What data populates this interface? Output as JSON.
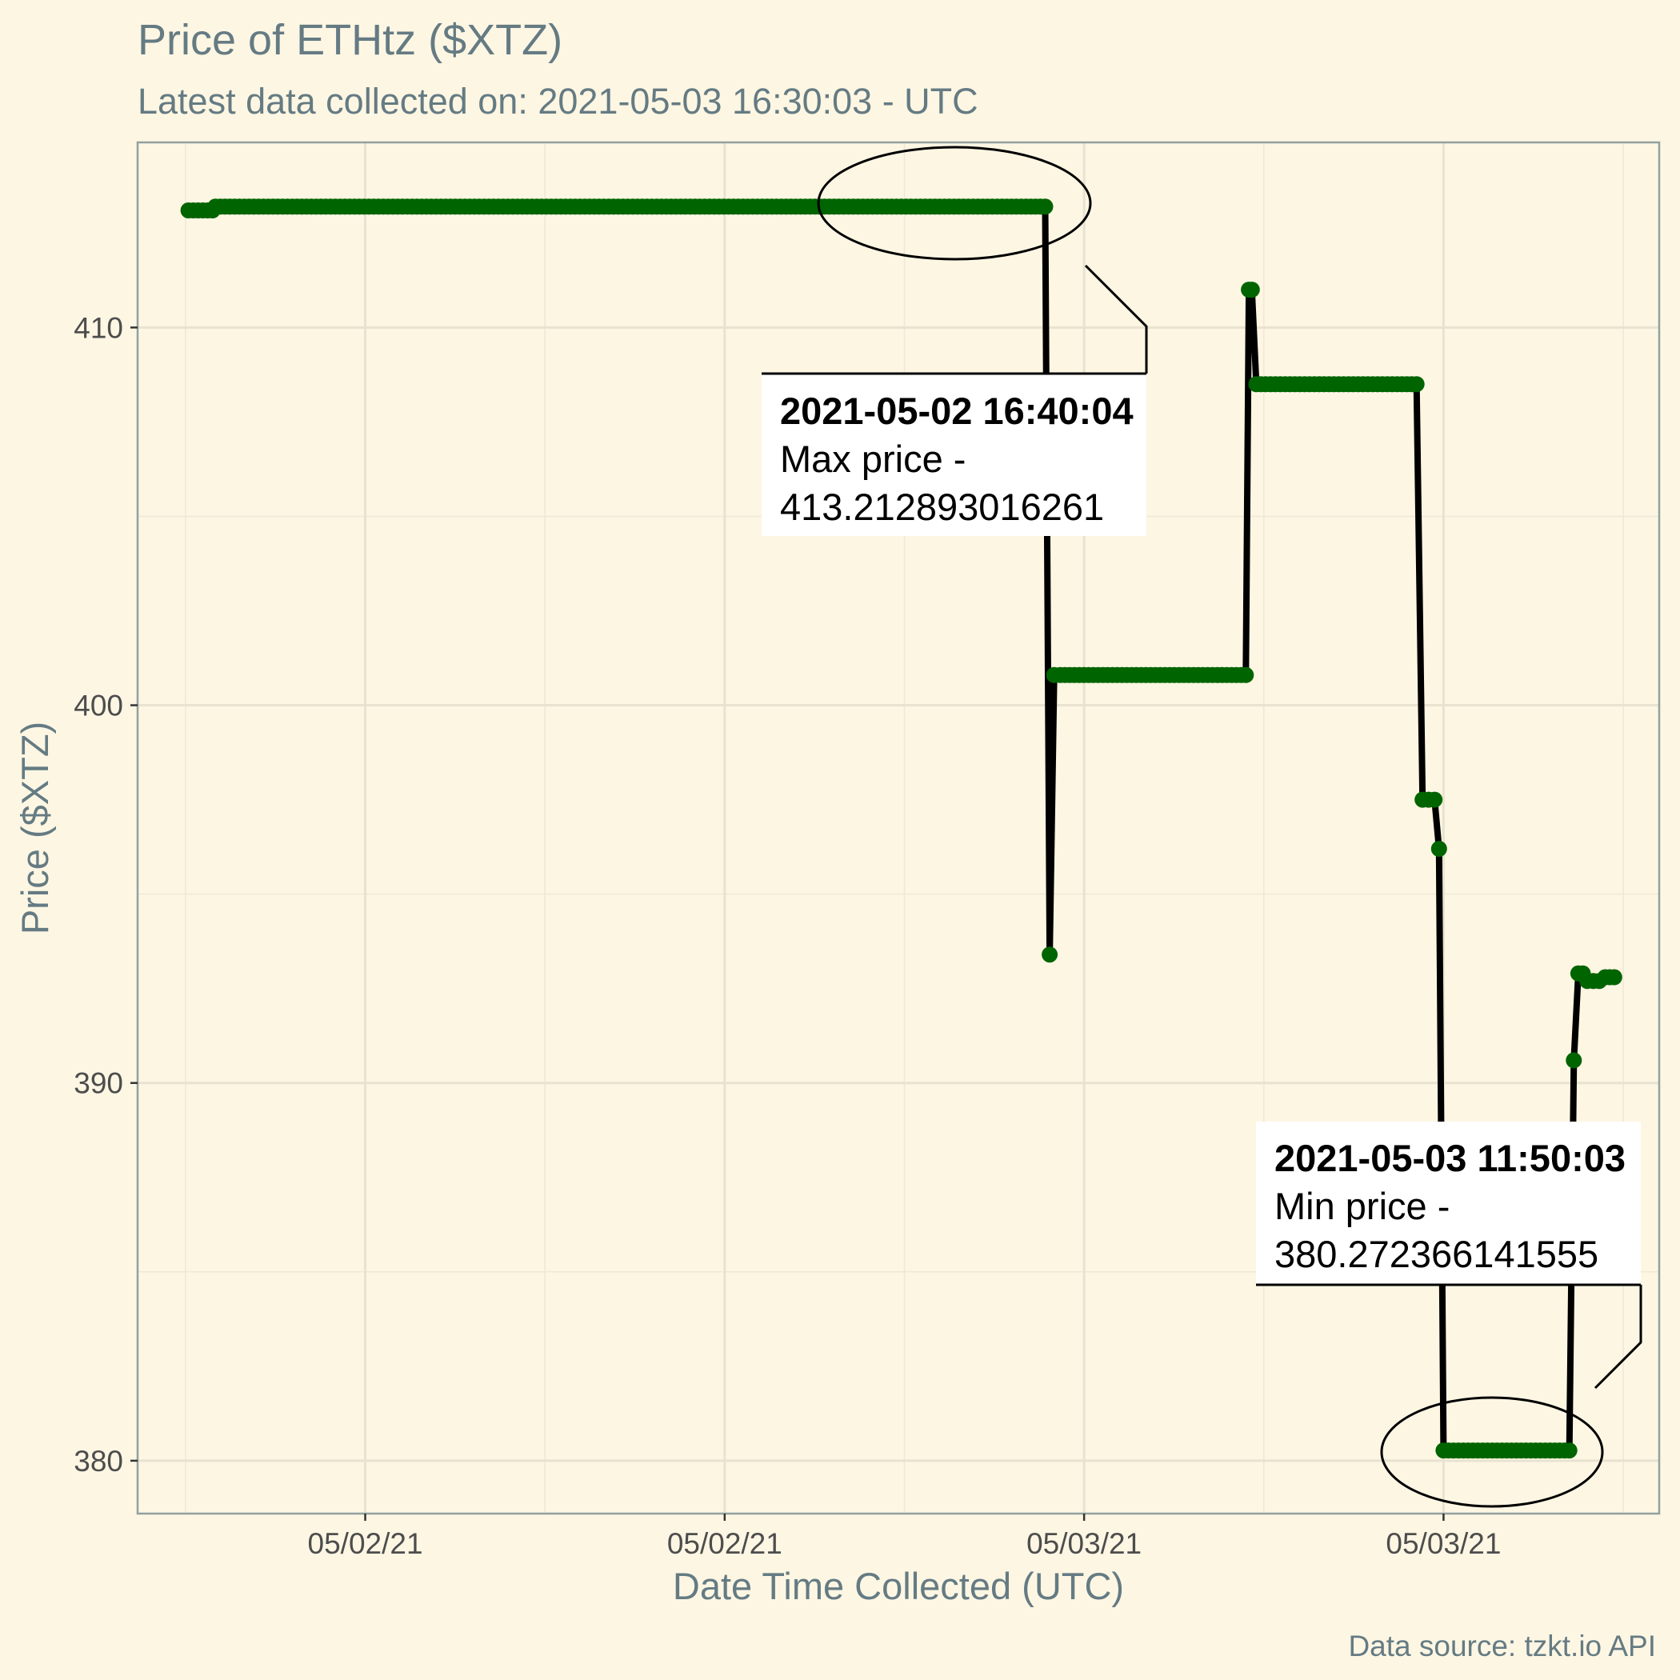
{
  "chart_data": {
    "type": "line",
    "title": "Price of ETHtz ($XTZ)",
    "subtitle": "Latest data collected on: 2021-05-03 16:30:03  - UTC",
    "xlabel": "Date Time Collected (UTC)",
    "ylabel": "Price ($XTZ)",
    "caption": "Data source: tzkt.io API",
    "x_tick_labels": [
      "05/02/21",
      "05/02/21",
      "05/03/21",
      "05/03/21"
    ],
    "x_tick_hours": [
      6,
      18,
      30,
      42
    ],
    "y_ticks": [
      380,
      390,
      400,
      410
    ],
    "xlim_hours": [
      -1.6,
      49.2
    ],
    "ylim": [
      378.6,
      414.9
    ],
    "grid": true,
    "colors": {
      "line": "#000000",
      "points": "#006400",
      "background": "#fdf6e3",
      "text": "#657b83"
    },
    "series": [
      {
        "x_hours": [
          0.1,
          0.9,
          1.0,
          28.7,
          28.85,
          29.0,
          29.2,
          35.4,
          35.5,
          35.6,
          35.75,
          35.9,
          41.1,
          41.3,
          41.7,
          41.85,
          42.0,
          42.5,
          46.2,
          46.35,
          46.5,
          46.65,
          46.8,
          47.2,
          47.4,
          47.7
        ],
        "y": [
          413.1,
          413.1,
          413.2,
          413.2,
          393.4,
          400.8,
          400.8,
          400.8,
          411.0,
          411.0,
          408.5,
          408.5,
          408.5,
          397.5,
          397.5,
          396.2,
          380.27,
          380.27,
          380.27,
          390.6,
          392.9,
          392.9,
          392.7,
          392.7,
          392.8,
          392.8
        ]
      }
    ],
    "annotations": [
      {
        "kind": "max",
        "time": "2021-05-02 16:40:04",
        "line1": "Max price -",
        "line2": "413.212893016261",
        "x_hours": 28.7,
        "y": 413.2
      },
      {
        "kind": "min",
        "time": "2021-05-03 11:50:03",
        "line1": "Min price -",
        "line2": "380.272366141555",
        "x_hours": 44.2,
        "y": 380.27
      }
    ]
  }
}
